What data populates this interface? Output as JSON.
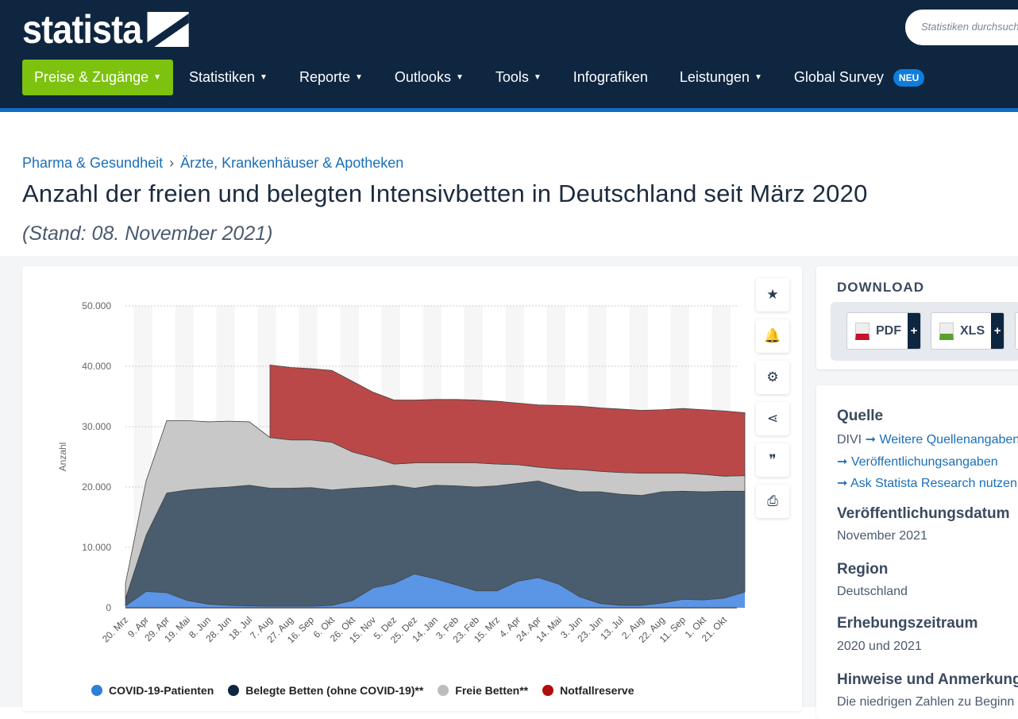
{
  "header": {
    "logo": "statista",
    "search_placeholder": "Statistiken durchsuchen",
    "nav": [
      {
        "label": "Preise & Zugänge",
        "caret": true
      },
      {
        "label": "Statistiken",
        "caret": true
      },
      {
        "label": "Reporte",
        "caret": true
      },
      {
        "label": "Outlooks",
        "caret": true
      },
      {
        "label": "Tools",
        "caret": true
      },
      {
        "label": "Infografiken",
        "caret": false
      },
      {
        "label": "Leistungen",
        "caret": true
      },
      {
        "label": "Global Survey",
        "caret": false
      }
    ],
    "badge": "NEU",
    "accent": "#7dc20f",
    "navbg": "#0f2640"
  },
  "breadcrumb": [
    "Pharma & Gesundheit",
    "Ärzte, Krankenhäuser & Apotheken"
  ],
  "title": "Anzahl der freien und belegten Intensivbetten in Deutschland seit März 2020",
  "subtitle": "(Stand: 08. November 2021)",
  "tools": [
    "star-icon",
    "bell-icon",
    "gear-icon",
    "share-icon",
    "quote-icon",
    "print-icon"
  ],
  "download": {
    "title": "DOWNLOAD",
    "buttons": [
      "PDF",
      "XLS"
    ]
  },
  "info": {
    "quelle_h": "Quelle",
    "quelle": "DIVI",
    "links": [
      "Weitere Quellenangaben",
      "Veröffentlichungsangaben",
      "Ask Statista Research nutzen"
    ],
    "pub_h": "Veröffentlichungsdatum",
    "pub": "November 2021",
    "region_h": "Region",
    "region": "Deutschland",
    "period_h": "Erhebungszeitraum",
    "period": "2020 und 2021",
    "notes_h": "Hinweise und Anmerkungen",
    "notes": "Die niedrigen Zahlen zu Beginn"
  },
  "chart_data": {
    "type": "area",
    "stacked": true,
    "ylabel": "Anzahl",
    "ylim": [
      0,
      50000
    ],
    "yticks": [
      "0",
      "10.000",
      "20.000",
      "30.000",
      "40.000",
      "50.000"
    ],
    "grid": true,
    "xticks": [
      "20. Mrz",
      "9. Apr",
      "29. Apr",
      "19. Mai",
      "8. Jun",
      "28. Jun",
      "18. Jul",
      "7. Aug",
      "27. Aug",
      "16. Sep",
      "6. Okt",
      "26. Okt",
      "15. Nov",
      "5. Dez",
      "25. Dez",
      "14. Jan",
      "3. Feb",
      "23. Feb",
      "15. Mrz",
      "4. Apr",
      "24. Apr",
      "14. Mai",
      "3. Jun",
      "23. Jun",
      "13. Jul",
      "2. Aug",
      "22. Aug",
      "11. Sep",
      "1. Okt",
      "21. Okt"
    ],
    "legend_position": "bottom",
    "series": [
      {
        "name": "COVID-19-Patienten",
        "color": "#5b95e5",
        "values": [
          300,
          2700,
          2500,
          1200,
          600,
          400,
          300,
          250,
          250,
          250,
          400,
          1200,
          3300,
          4000,
          5600,
          4800,
          3800,
          2800,
          2800,
          4400,
          5000,
          3900,
          1800,
          700,
          400,
          400,
          800,
          1400,
          1300,
          1600,
          2600
        ]
      },
      {
        "name": "Belegte Betten (ohne COVID-19)**",
        "color": "#4a5d6e",
        "values": [
          1200,
          9300,
          16500,
          18300,
          19200,
          19600,
          20000,
          19550,
          19550,
          19650,
          19100,
          18600,
          16700,
          16300,
          14200,
          15500,
          16400,
          17200,
          17400,
          16200,
          16000,
          16100,
          17400,
          18500,
          18400,
          18200,
          18400,
          17900,
          17900,
          17700,
          16700
        ]
      },
      {
        "name": "Freie Betten**",
        "color": "#c8c8c8",
        "values": [
          2500,
          9000,
          12000,
          11500,
          11000,
          10900,
          10500,
          8400,
          8000,
          7900,
          7900,
          6000,
          4900,
          3500,
          4200,
          3700,
          3800,
          4000,
          3600,
          3100,
          2300,
          3000,
          3700,
          3400,
          3600,
          3700,
          3100,
          3000,
          2900,
          2500,
          2600
        ]
      },
      {
        "name": "Notfallreserve",
        "color": "#bb4848",
        "values": [
          0,
          0,
          0,
          0,
          0,
          0,
          0,
          12000,
          12000,
          11800,
          11900,
          11700,
          10800,
          10600,
          10400,
          10500,
          10500,
          10400,
          10400,
          10200,
          10300,
          10500,
          10500,
          10500,
          10500,
          10400,
          10500,
          10700,
          10700,
          10800,
          10400
        ]
      }
    ],
    "legend_colors": [
      "#2f7ed8",
      "#0f2640",
      "#bdbdbd",
      "#b00d0d"
    ]
  }
}
